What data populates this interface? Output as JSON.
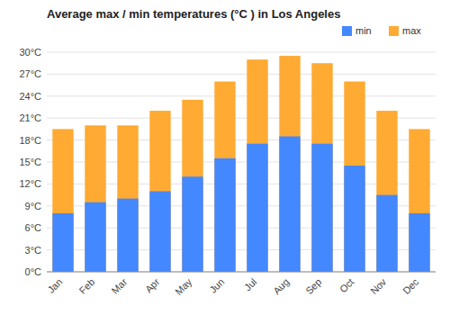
{
  "chart_data": {
    "type": "bar",
    "title": "Average max / min temperatures (°C ) in Los Angeles",
    "categories": [
      "Jan",
      "Feb",
      "Mar",
      "Apr",
      "May",
      "Jun",
      "Jul",
      "Aug",
      "Sep",
      "Oct",
      "Nov",
      "Dec"
    ],
    "series": [
      {
        "name": "min",
        "color": "#4488ff",
        "values": [
          8,
          9.5,
          10,
          11,
          13,
          15.5,
          17.5,
          18.5,
          17.5,
          14.5,
          10.5,
          8
        ]
      },
      {
        "name": "max",
        "color": "#ffaa33",
        "values": [
          19.5,
          20,
          20,
          22,
          23.5,
          26,
          29,
          29.5,
          28.5,
          26,
          22,
          19.5
        ]
      }
    ],
    "ylim": [
      0,
      30
    ],
    "yticks": [
      {
        "value": 0,
        "label": "0°C"
      },
      {
        "value": 3,
        "label": "3°C"
      },
      {
        "value": 6,
        "label": "6°C"
      },
      {
        "value": 9,
        "label": "9°C"
      },
      {
        "value": 12,
        "label": "12°C"
      },
      {
        "value": 15,
        "label": "15°C"
      },
      {
        "value": 18,
        "label": "18°C"
      },
      {
        "value": 21,
        "label": "21°C"
      },
      {
        "value": 24,
        "label": "24°C"
      },
      {
        "value": 27,
        "label": "27°C"
      },
      {
        "value": 30,
        "label": "30°C"
      }
    ],
    "grid": true,
    "legend": "upper right"
  }
}
